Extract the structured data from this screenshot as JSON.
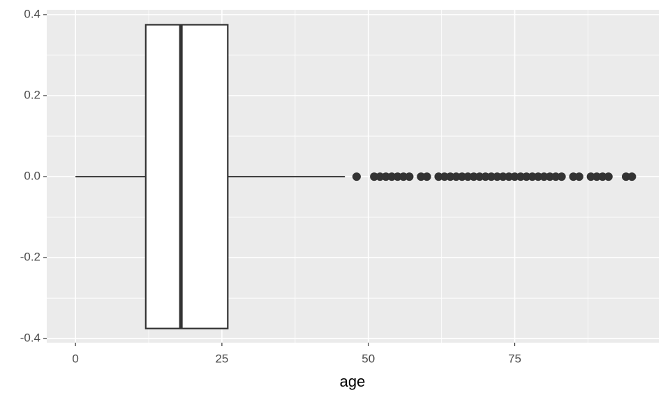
{
  "chart_data": {
    "type": "boxplot",
    "x_label": "age",
    "box": {
      "min": 0,
      "q1": 12,
      "median": 18,
      "q3": 26,
      "max": 46,
      "outliers": [
        48,
        51,
        52,
        53,
        54,
        55,
        56,
        57,
        59,
        60,
        62,
        63,
        64,
        65,
        66,
        67,
        68,
        69,
        70,
        71,
        72,
        73,
        74,
        75,
        76,
        77,
        78,
        79,
        80,
        81,
        82,
        83,
        85,
        86,
        88,
        89,
        90,
        91,
        94,
        95
      ]
    },
    "xlim": [
      -4.9,
      99.6
    ],
    "xticks": [
      0,
      25,
      50,
      75
    ],
    "ylim": [
      -0.41,
      0.412
    ],
    "yticks": [
      -0.4,
      -0.2,
      {
        "value": 0,
        "label": "0.0"
      },
      0.2,
      0.4
    ],
    "grid": true,
    "color": "#333333"
  }
}
